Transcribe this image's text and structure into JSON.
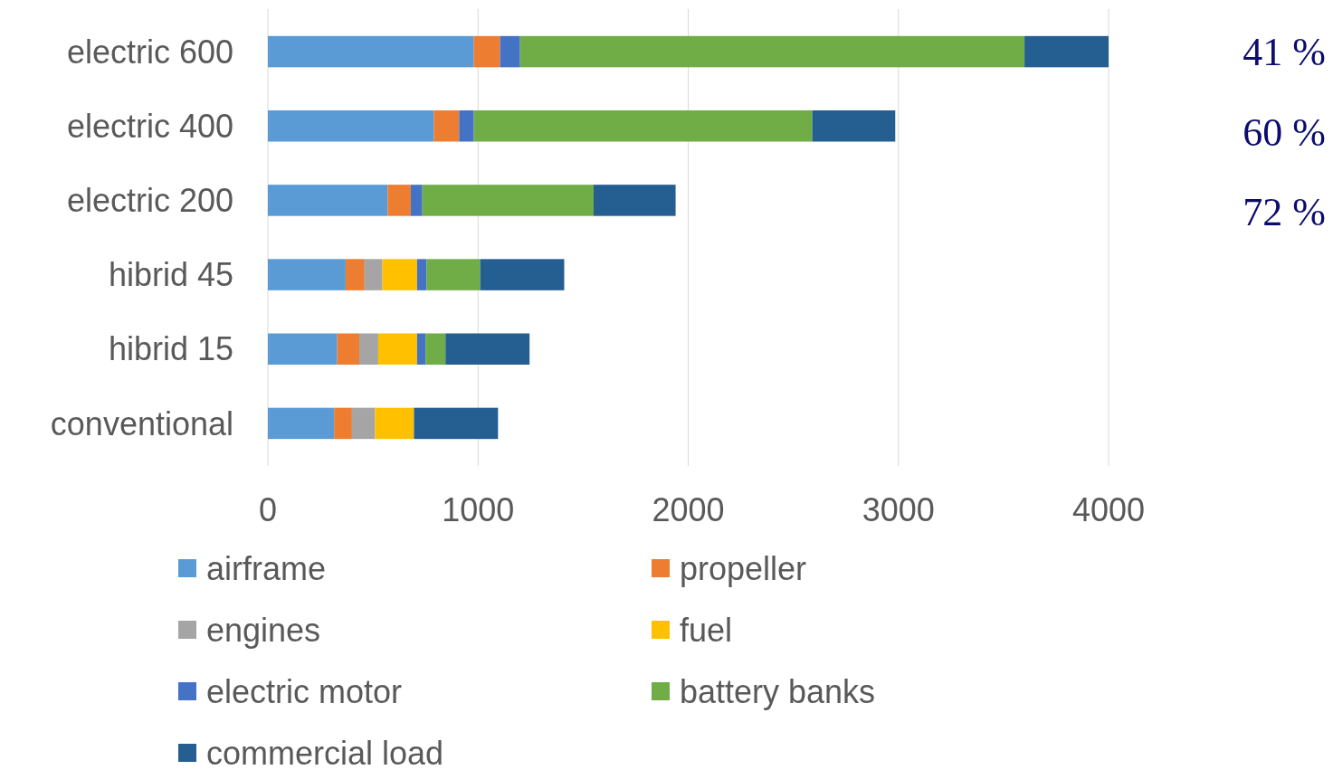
{
  "chart_data": {
    "type": "bar",
    "orientation": "horizontal",
    "stacked": true,
    "categories": [
      "electric 600",
      "electric 400",
      "electric 200",
      "hibrid 45",
      "hibrid 15",
      "conventional"
    ],
    "series": [
      {
        "name": "airframe",
        "color": "#5b9bd5",
        "values": [
          980,
          790,
          570,
          370,
          330,
          315
        ]
      },
      {
        "name": "propeller",
        "color": "#ed7d31",
        "values": [
          125,
          120,
          110,
          90,
          105,
          85
        ]
      },
      {
        "name": "engines",
        "color": "#a5a5a5",
        "values": [
          0,
          0,
          0,
          85,
          90,
          110
        ]
      },
      {
        "name": "fuel",
        "color": "#ffc000",
        "values": [
          0,
          0,
          0,
          165,
          185,
          185
        ]
      },
      {
        "name": "electric motor",
        "color": "#4472c4",
        "values": [
          95,
          70,
          55,
          45,
          40,
          0
        ]
      },
      {
        "name": "battery banks",
        "color": "#70ad47",
        "values": [
          2400,
          1610,
          815,
          255,
          95,
          0
        ]
      },
      {
        "name": "commercial load",
        "color": "#255e91",
        "values": [
          400,
          395,
          390,
          400,
          400,
          400
        ]
      }
    ],
    "xlim": [
      0,
      4000
    ],
    "xticks": [
      0,
      1000,
      2000,
      3000,
      4000
    ],
    "grid": "x",
    "legend": "bottom",
    "annotations": [
      "41 %",
      "60 %",
      "72 %"
    ]
  }
}
